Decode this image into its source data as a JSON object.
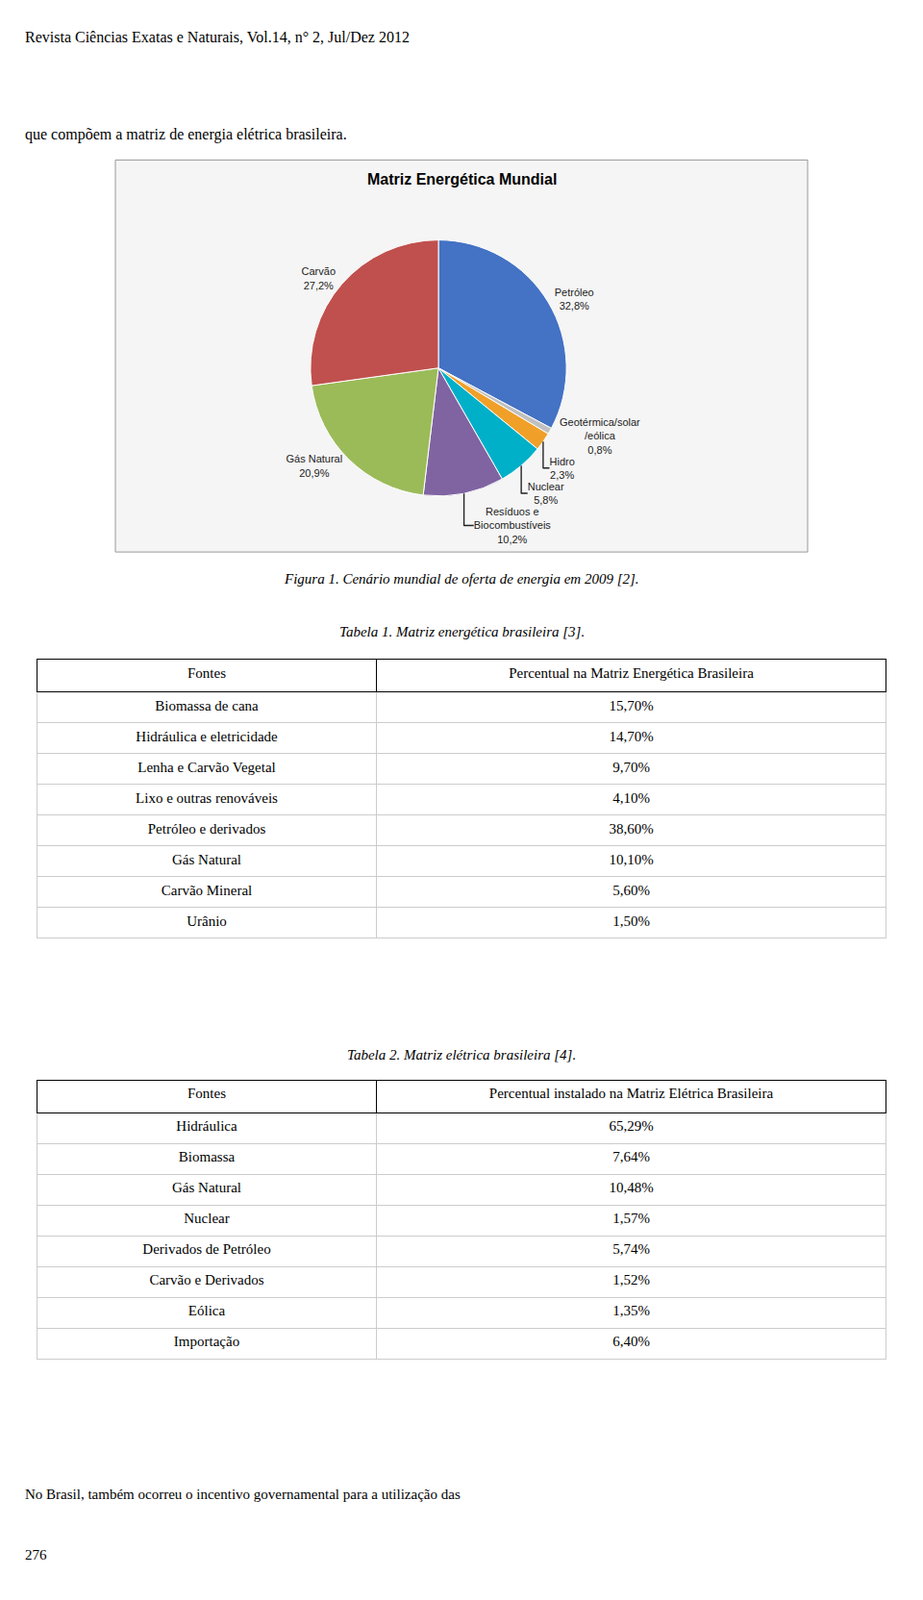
{
  "page": {
    "header": "Revista Ciências Exatas e Naturais, Vol.14, n° 2, Jul/Dez 2012",
    "intro": "que compõem a matriz de energia elétrica brasileira.",
    "footer": "No Brasil, também ocorreu o incentivo governamental para a utilização das",
    "page_number": "276"
  },
  "chart_data": [
    {
      "type": "pie",
      "title": "Matriz Energética Mundial",
      "caption": "Figura 1. Cenário mundial de oferta de energia em 2009 [2].",
      "categories": [
        "Petróleo",
        "Geotérmica/solar\n/eólica",
        "Hidro",
        "Nuclear",
        "Resíduos e\nBiocombustíveis",
        "Gás Natural",
        "Carvão"
      ],
      "values": [
        32.8,
        0.8,
        2.3,
        5.8,
        10.2,
        20.9,
        27.2
      ],
      "value_labels": [
        "32,8%",
        "0,8%",
        "2,3%",
        "5,8%",
        "10,2%",
        "20,9%",
        "27,2%"
      ],
      "colors": [
        "#4472C4",
        "#C0C0C0",
        "#F0A028",
        "#00B0C8",
        "#8064A2",
        "#9BBB59",
        "#C0504D"
      ]
    },
    {
      "type": "table",
      "title": "Tabela 1. Matriz energética brasileira [3].",
      "columns": [
        "Fontes",
        "Percentual na Matriz Energética Brasileira"
      ],
      "rows": [
        [
          "Biomassa de cana",
          "15,70%"
        ],
        [
          "Hidráulica e eletricidade",
          "14,70%"
        ],
        [
          "Lenha e Carvão Vegetal",
          "9,70%"
        ],
        [
          "Lixo e outras renováveis",
          "4,10%"
        ],
        [
          "Petróleo e derivados",
          "38,60%"
        ],
        [
          "Gás Natural",
          "10,10%"
        ],
        [
          "Carvão Mineral",
          "5,60%"
        ],
        [
          "Urânio",
          "1,50%"
        ]
      ]
    },
    {
      "type": "table",
      "title": "Tabela 2. Matriz elétrica brasileira [4].",
      "columns": [
        "Fontes",
        "Percentual instalado na Matriz Elétrica Brasileira"
      ],
      "rows": [
        [
          "Hidráulica",
          "65,29%"
        ],
        [
          "Biomassa",
          "7,64%"
        ],
        [
          "Gás Natural",
          "10,48%"
        ],
        [
          "Nuclear",
          "1,57%"
        ],
        [
          "Derivados de Petróleo",
          "5,74%"
        ],
        [
          "Carvão e Derivados",
          "1,52%"
        ],
        [
          "Eólica",
          "1,35%"
        ],
        [
          "Importação",
          "6,40%"
        ]
      ]
    }
  ]
}
